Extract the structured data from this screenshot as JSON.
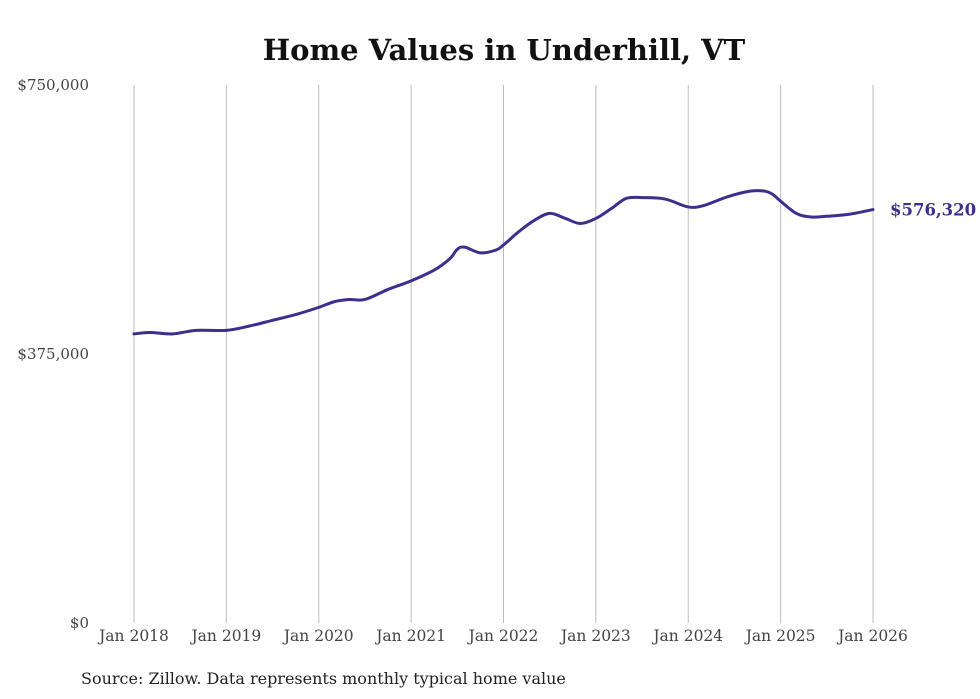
{
  "chart_data": {
    "type": "line",
    "title": "Home Values in Underhill, VT",
    "xlabel": "",
    "ylabel": "",
    "ylim": [
      0,
      750000
    ],
    "yticks": [
      {
        "value": 0,
        "label": "$0"
      },
      {
        "value": 375000,
        "label": "$375,000"
      },
      {
        "value": 750000,
        "label": "$750,000"
      }
    ],
    "xticks": [
      {
        "value": 2018,
        "label": "Jan 2018"
      },
      {
        "value": 2019,
        "label": "Jan 2019"
      },
      {
        "value": 2020,
        "label": "Jan 2020"
      },
      {
        "value": 2021,
        "label": "Jan 2021"
      },
      {
        "value": 2022,
        "label": "Jan 2022"
      },
      {
        "value": 2023,
        "label": "Jan 2023"
      },
      {
        "value": 2024,
        "label": "Jan 2024"
      },
      {
        "value": 2025,
        "label": "Jan 2025"
      },
      {
        "value": 2026,
        "label": "Jan 2026"
      }
    ],
    "xlim": [
      2018,
      2026
    ],
    "grid": "vertical",
    "series": [
      {
        "name": "Typical home value",
        "color": "#3b2f8f",
        "points": [
          [
            2018.0,
            403000
          ],
          [
            2018.17,
            405000
          ],
          [
            2018.42,
            403000
          ],
          [
            2018.67,
            408000
          ],
          [
            2019.0,
            408000
          ],
          [
            2019.25,
            414000
          ],
          [
            2019.5,
            422000
          ],
          [
            2019.75,
            430000
          ],
          [
            2020.0,
            440000
          ],
          [
            2020.17,
            448000
          ],
          [
            2020.33,
            451000
          ],
          [
            2020.5,
            451000
          ],
          [
            2020.75,
            465000
          ],
          [
            2021.0,
            477000
          ],
          [
            2021.25,
            492000
          ],
          [
            2021.42,
            508000
          ],
          [
            2021.5,
            521000
          ],
          [
            2021.58,
            524000
          ],
          [
            2021.75,
            516000
          ],
          [
            2021.92,
            520000
          ],
          [
            2022.0,
            527000
          ],
          [
            2022.17,
            546000
          ],
          [
            2022.33,
            561000
          ],
          [
            2022.5,
            571000
          ],
          [
            2022.67,
            564000
          ],
          [
            2022.83,
            557000
          ],
          [
            2023.0,
            564000
          ],
          [
            2023.17,
            578000
          ],
          [
            2023.33,
            592000
          ],
          [
            2023.5,
            593000
          ],
          [
            2023.75,
            591000
          ],
          [
            2024.0,
            580000
          ],
          [
            2024.17,
            582000
          ],
          [
            2024.42,
            594000
          ],
          [
            2024.67,
            602000
          ],
          [
            2024.83,
            602000
          ],
          [
            2024.92,
            597000
          ],
          [
            2025.0,
            588000
          ],
          [
            2025.17,
            571000
          ],
          [
            2025.33,
            566000
          ],
          [
            2025.5,
            567000
          ],
          [
            2025.75,
            570000
          ],
          [
            2026.0,
            576320
          ]
        ]
      }
    ],
    "end_label": "$576,320",
    "source": "Source: Zillow. Data represents monthly typical home value"
  }
}
